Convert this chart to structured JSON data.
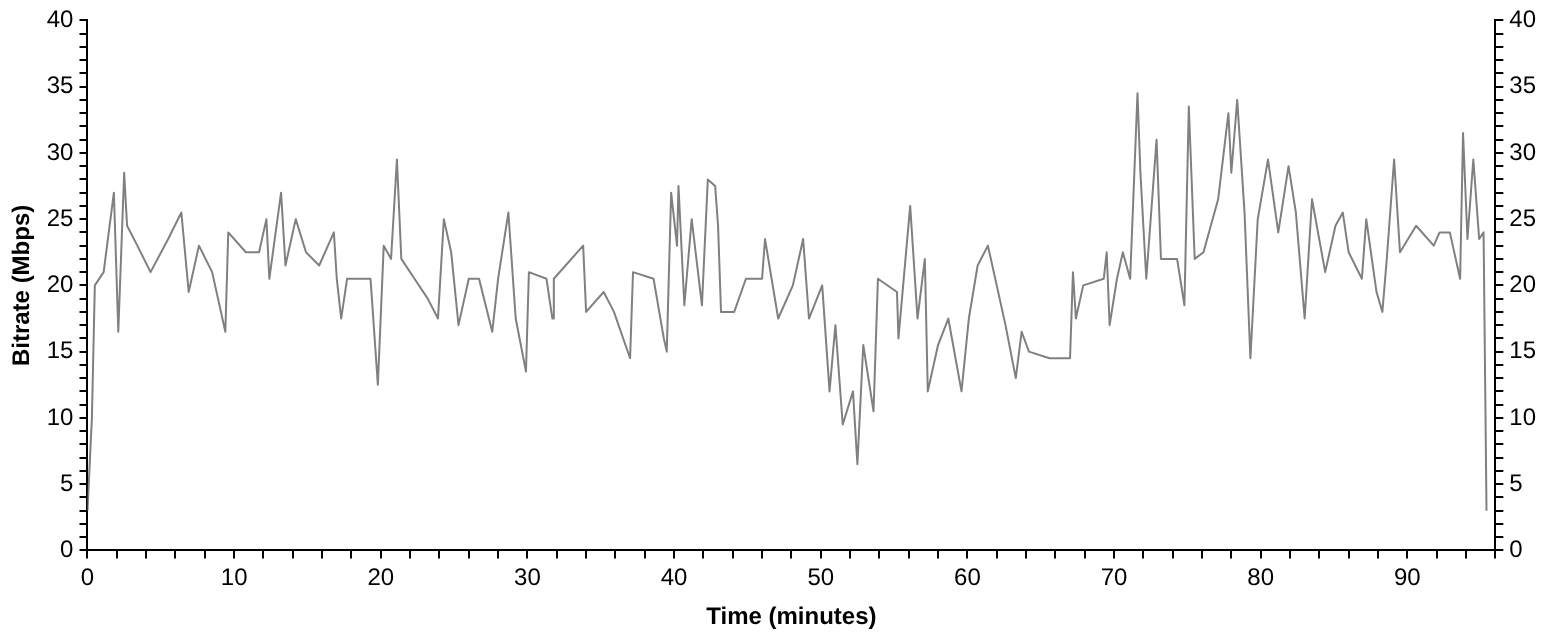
{
  "chart_data": {
    "type": "line",
    "xlabel": "Time (minutes)",
    "ylabel": "Bitrate (Mbps)",
    "grid": false,
    "legend": false,
    "marker": "none",
    "line_style": "solid",
    "xlim": [
      0,
      96
    ],
    "xticks": [
      0,
      {
        "value": 2,
        "label": null
      },
      {
        "value": 4,
        "label": null
      },
      {
        "value": 6,
        "label": null
      },
      {
        "value": 8,
        "label": null
      },
      10,
      {
        "value": 12,
        "label": null
      },
      {
        "value": 14,
        "label": null
      },
      {
        "value": 16,
        "label": null
      },
      {
        "value": 18,
        "label": null
      },
      20,
      {
        "value": 22,
        "label": null
      },
      {
        "value": 24,
        "label": null
      },
      {
        "value": 26,
        "label": null
      },
      {
        "value": 28,
        "label": null
      },
      30,
      {
        "value": 32,
        "label": null
      },
      {
        "value": 34,
        "label": null
      },
      {
        "value": 36,
        "label": null
      },
      {
        "value": 38,
        "label": null
      },
      40,
      {
        "value": 42,
        "label": null
      },
      {
        "value": 44,
        "label": null
      },
      {
        "value": 46,
        "label": null
      },
      {
        "value": 48,
        "label": null
      },
      50,
      {
        "value": 52,
        "label": null
      },
      {
        "value": 54,
        "label": null
      },
      {
        "value": 56,
        "label": null
      },
      {
        "value": 58,
        "label": null
      },
      60,
      {
        "value": 62,
        "label": null
      },
      {
        "value": 64,
        "label": null
      },
      {
        "value": 66,
        "label": null
      },
      {
        "value": 68,
        "label": null
      },
      70,
      {
        "value": 72,
        "label": null
      },
      {
        "value": 74,
        "label": null
      },
      {
        "value": 76,
        "label": null
      },
      {
        "value": 78,
        "label": null
      },
      80,
      {
        "value": 82,
        "label": null
      },
      {
        "value": 84,
        "label": null
      },
      {
        "value": 86,
        "label": null
      },
      {
        "value": 88,
        "label": null
      },
      90,
      {
        "value": 92,
        "label": null
      },
      {
        "value": 94,
        "label": null
      },
      {
        "value": 96,
        "label": null
      }
    ],
    "ylim": [
      0,
      40
    ],
    "yticks": [
      0,
      {
        "value": 1,
        "label": null
      },
      {
        "value": 2,
        "label": null
      },
      {
        "value": 3,
        "label": null
      },
      {
        "value": 4,
        "label": null
      },
      5,
      {
        "value": 6,
        "label": null
      },
      {
        "value": 7,
        "label": null
      },
      {
        "value": 8,
        "label": null
      },
      {
        "value": 9,
        "label": null
      },
      10,
      {
        "value": 11,
        "label": null
      },
      {
        "value": 12,
        "label": null
      },
      {
        "value": 13,
        "label": null
      },
      {
        "value": 14,
        "label": null
      },
      15,
      {
        "value": 16,
        "label": null
      },
      {
        "value": 17,
        "label": null
      },
      {
        "value": 18,
        "label": null
      },
      {
        "value": 19,
        "label": null
      },
      20,
      {
        "value": 21,
        "label": null
      },
      {
        "value": 22,
        "label": null
      },
      {
        "value": 23,
        "label": null
      },
      {
        "value": 24,
        "label": null
      },
      25,
      {
        "value": 26,
        "label": null
      },
      {
        "value": 27,
        "label": null
      },
      {
        "value": 28,
        "label": null
      },
      {
        "value": 29,
        "label": null
      },
      30,
      {
        "value": 31,
        "label": null
      },
      {
        "value": 32,
        "label": null
      },
      {
        "value": 33,
        "label": null
      },
      {
        "value": 34,
        "label": null
      },
      35,
      {
        "value": 36,
        "label": null
      },
      {
        "value": 37,
        "label": null
      },
      {
        "value": 38,
        "label": null
      },
      {
        "value": 39,
        "label": null
      },
      40
    ],
    "y2lim": [
      0,
      40
    ],
    "y2ticks": [
      0,
      {
        "value": 1,
        "label": null
      },
      {
        "value": 2,
        "label": null
      },
      {
        "value": 3,
        "label": null
      },
      {
        "value": 4,
        "label": null
      },
      5,
      {
        "value": 6,
        "label": null
      },
      {
        "value": 7,
        "label": null
      },
      {
        "value": 8,
        "label": null
      },
      {
        "value": 9,
        "label": null
      },
      10,
      {
        "value": 11,
        "label": null
      },
      {
        "value": 12,
        "label": null
      },
      {
        "value": 13,
        "label": null
      },
      {
        "value": 14,
        "label": null
      },
      15,
      {
        "value": 16,
        "label": null
      },
      {
        "value": 17,
        "label": null
      },
      {
        "value": 18,
        "label": null
      },
      {
        "value": 19,
        "label": null
      },
      20,
      {
        "value": 21,
        "label": null
      },
      {
        "value": 22,
        "label": null
      },
      {
        "value": 23,
        "label": null
      },
      {
        "value": 24,
        "label": null
      },
      25,
      {
        "value": 26,
        "label": null
      },
      {
        "value": 27,
        "label": null
      },
      {
        "value": 28,
        "label": null
      },
      {
        "value": 29,
        "label": null
      },
      30,
      {
        "value": 31,
        "label": null
      },
      {
        "value": 32,
        "label": null
      },
      {
        "value": 33,
        "label": null
      },
      {
        "value": 34,
        "label": null
      },
      35,
      {
        "value": 36,
        "label": null
      },
      {
        "value": 37,
        "label": null
      },
      {
        "value": 38,
        "label": null
      },
      {
        "value": 39,
        "label": null
      },
      40
    ],
    "series": [
      {
        "color": "#808080",
        "x": [
          0,
          0.3,
          0.5,
          1.1,
          1.8,
          2.1,
          2.5,
          2.7,
          3.4,
          4.3,
          5.5,
          6.4,
          6.9,
          7.6,
          8.5,
          9.4,
          9.6,
          10.8,
          11.7,
          12.2,
          12.4,
          13.2,
          13.5,
          14.2,
          14.9,
          15.8,
          16.8,
          17.0,
          17.3,
          17.7,
          19.3,
          19.8,
          20.2,
          20.7,
          21.1,
          21.4,
          22.3,
          23.2,
          23.9,
          24.3,
          24.8,
          25.3,
          26.0,
          26.7,
          27.6,
          28.0,
          28.7,
          29.2,
          29.9,
          30.1,
          31.3,
          31.7,
          31.8,
          33.8,
          34.0,
          35.2,
          35.9,
          37.0,
          37.2,
          38.6,
          39.3,
          39.5,
          39.8,
          40.2,
          40.3,
          40.7,
          41.2,
          41.9,
          42.3,
          42.8,
          43.0,
          43.2,
          44.1,
          44.9,
          46.0,
          46.2,
          47.1,
          48.1,
          48.8,
          49.2,
          50.1,
          50.6,
          51.0,
          51.5,
          52.2,
          52.5,
          52.9,
          53.6,
          53.9,
          55.2,
          55.3,
          56.1,
          56.6,
          57.1,
          57.3,
          58.0,
          58.7,
          59.6,
          60.1,
          60.7,
          61.4,
          61.9,
          62.6,
          63.3,
          63.7,
          64.2,
          65.6,
          67.0,
          67.2,
          67.4,
          67.9,
          69.3,
          69.5,
          69.7,
          70.2,
          70.6,
          71.1,
          71.6,
          71.8,
          72.2,
          72.9,
          73.2,
          74.3,
          74.8,
          75.1,
          75.5,
          76.1,
          77.1,
          77.8,
          78.0,
          78.4,
          78.9,
          79.3,
          79.8,
          80.5,
          81.2,
          81.9,
          82.4,
          83.0,
          83.5,
          84.4,
          85.1,
          85.6,
          86.0,
          86.9,
          87.2,
          87.9,
          88.3,
          88.6,
          89.1,
          89.5,
          90.6,
          91.8,
          92.2,
          92.9,
          93.6,
          93.8,
          94.1,
          94.5,
          94.9,
          95.2,
          95.4
        ],
        "values": [
          3,
          10,
          20,
          21,
          27,
          16.5,
          28.5,
          24.5,
          23,
          21,
          23.5,
          25.5,
          19.5,
          23,
          21,
          16.5,
          24,
          22.5,
          22.5,
          25,
          20.5,
          27,
          21.5,
          25,
          22.5,
          21.5,
          24,
          20.5,
          17.5,
          20.5,
          20.5,
          12.5,
          23,
          22,
          29.5,
          22,
          20.5,
          19,
          17.5,
          25,
          22.5,
          17,
          20.5,
          20.5,
          16.5,
          20.5,
          25.5,
          17.5,
          13.5,
          21,
          20.5,
          17.5,
          20.5,
          23,
          18,
          19.5,
          18,
          14.5,
          21,
          20.5,
          16,
          15,
          27,
          23,
          27.5,
          18.5,
          25,
          18.5,
          28,
          27.5,
          24.5,
          18,
          18,
          20.5,
          20.5,
          23.5,
          17.5,
          20,
          23.5,
          17.5,
          20,
          12,
          17,
          9.5,
          12,
          6.5,
          15.5,
          10.5,
          20.5,
          19.5,
          16,
          26,
          17.5,
          22,
          12,
          15.5,
          17.5,
          12,
          17.5,
          21.5,
          23,
          20.5,
          17,
          13,
          16.5,
          15,
          14.5,
          14.5,
          21,
          17.5,
          20,
          20.5,
          22.5,
          17,
          20.5,
          22.5,
          20.5,
          34.5,
          28.5,
          20.5,
          31,
          22,
          22,
          18.5,
          33.5,
          22,
          22.5,
          26.5,
          33,
          28.5,
          34,
          25.5,
          14.5,
          25,
          29.5,
          24,
          29,
          25.5,
          17.5,
          26.5,
          21,
          24.5,
          25.5,
          22.5,
          20.5,
          25,
          19.5,
          18,
          22,
          29.5,
          22.5,
          24.5,
          23,
          24,
          24,
          20.5,
          31.5,
          23.5,
          29.5,
          23.5,
          24,
          3
        ]
      }
    ]
  }
}
